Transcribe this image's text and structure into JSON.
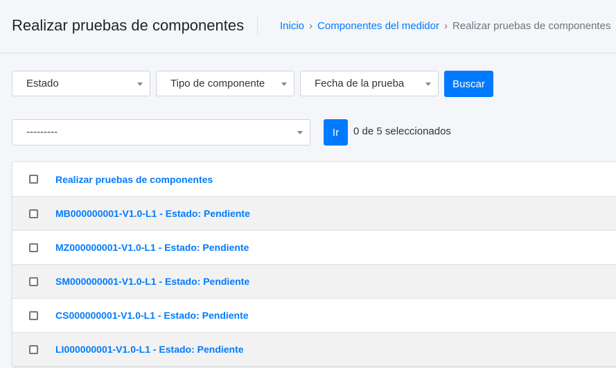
{
  "header": {
    "title": "Realizar pruebas de componentes",
    "breadcrumb": [
      {
        "label": "Inicio"
      },
      {
        "label": "Componentes del medidor"
      },
      {
        "label": "Realizar pruebas de componentes"
      }
    ],
    "breadcrumb_separator": "›"
  },
  "filters": {
    "estado": "Estado",
    "tipo": "Tipo de componente",
    "fecha": "Fecha de la prueba",
    "search_label": "Buscar"
  },
  "actions": {
    "selected_action": "---------",
    "go_label": "Ir",
    "selection_count": "0 de 5 seleccionados"
  },
  "table": {
    "header": "Realizar pruebas de componentes",
    "rows": [
      {
        "label": "MB000000001-V1.0-L1 - Estado: Pendiente"
      },
      {
        "label": "MZ000000001-V1.0-L1 - Estado: Pendiente"
      },
      {
        "label": "SM000000001-V1.0-L1 - Estado: Pendiente"
      },
      {
        "label": "CS000000001-V1.0-L1 - Estado: Pendiente"
      },
      {
        "label": "LI000000001-V1.0-L1 - Estado: Pendiente"
      }
    ]
  },
  "colors": {
    "accent": "#007bff",
    "background": "#f4f6f9"
  }
}
